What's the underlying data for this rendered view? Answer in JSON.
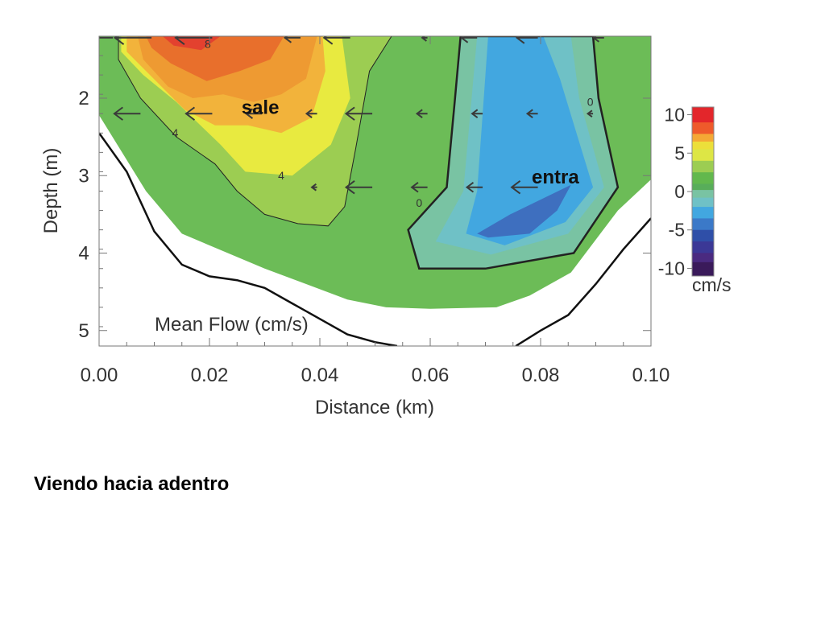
{
  "slide": {
    "caption": "Viendo hacia adentro"
  },
  "chart_data": {
    "type": "heatmap",
    "title": "Mean Flow (cm/s)",
    "xlabel": "Distance (km)",
    "ylabel": "Depth (m)",
    "xlim": [
      0.0,
      0.1
    ],
    "ylim": [
      5.2,
      1.2
    ],
    "x_ticks": [
      "0.00",
      "0.02",
      "0.04",
      "0.06",
      "0.08",
      "0.10"
    ],
    "x_tick_values": [
      0.0,
      0.02,
      0.04,
      0.06,
      0.08,
      0.1
    ],
    "y_ticks": [
      "2",
      "3",
      "4",
      "5"
    ],
    "y_tick_values": [
      2,
      3,
      4,
      5
    ],
    "colorbar": {
      "unit": "cm/s",
      "ticks": [
        "10",
        "5",
        "0",
        "-5",
        "-10"
      ],
      "tick_values": [
        10,
        5,
        0,
        -5,
        -10
      ],
      "range": [
        -11,
        11
      ]
    },
    "annotations": [
      {
        "text": "sale",
        "x": 0.0258,
        "y": 2.2
      },
      {
        "text": "entra",
        "x": 0.0784,
        "y": 3.1
      }
    ],
    "contour_labels": [
      {
        "text": "8",
        "x": 0.0197,
        "y": 1.35
      },
      {
        "text": "4",
        "x": 0.0138,
        "y": 2.5
      },
      {
        "text": "4",
        "x": 0.033,
        "y": 3.05
      },
      {
        "text": "0",
        "x": 0.058,
        "y": 3.4
      },
      {
        "text": "0",
        "x": 0.089,
        "y": 2.1
      }
    ],
    "value_regions": [
      {
        "level": 3,
        "points": [
          [
            0.0,
            1.2
          ],
          [
            0.1,
            1.2
          ],
          [
            0.1,
            3.05
          ],
          [
            0.094,
            3.45
          ],
          [
            0.0855,
            4.25
          ],
          [
            0.078,
            4.55
          ],
          [
            0.072,
            4.7
          ],
          [
            0.06,
            4.72
          ],
          [
            0.052,
            4.7
          ],
          [
            0.045,
            4.6
          ],
          [
            0.03,
            4.2
          ],
          [
            0.015,
            3.75
          ],
          [
            0.0085,
            3.2
          ],
          [
            0.0,
            2.22
          ]
        ]
      },
      {
        "level": 5,
        "points": [
          [
            0.0035,
            1.2
          ],
          [
            0.053,
            1.2
          ],
          [
            0.049,
            1.65
          ],
          [
            0.0465,
            2.65
          ],
          [
            0.0445,
            3.4
          ],
          [
            0.0415,
            3.65
          ],
          [
            0.036,
            3.62
          ],
          [
            0.03,
            3.5
          ],
          [
            0.025,
            3.2
          ],
          [
            0.021,
            2.85
          ],
          [
            0.014,
            2.5
          ],
          [
            0.0075,
            2.0
          ],
          [
            0.0035,
            1.5
          ]
        ]
      },
      {
        "level": 6,
        "points": [
          [
            0.004,
            1.2
          ],
          [
            0.044,
            1.2
          ],
          [
            0.0455,
            2.0
          ],
          [
            0.042,
            2.6
          ],
          [
            0.035,
            3.0
          ],
          [
            0.0265,
            2.95
          ],
          [
            0.022,
            2.6
          ],
          [
            0.014,
            2.05
          ],
          [
            0.008,
            1.7
          ],
          [
            0.004,
            1.4
          ]
        ]
      },
      {
        "level": 7,
        "points": [
          [
            0.005,
            1.2
          ],
          [
            0.0405,
            1.2
          ],
          [
            0.041,
            1.65
          ],
          [
            0.0385,
            2.25
          ],
          [
            0.033,
            2.45
          ],
          [
            0.027,
            2.35
          ],
          [
            0.021,
            2.35
          ],
          [
            0.0155,
            2.15
          ],
          [
            0.0085,
            1.65
          ],
          [
            0.005,
            1.4
          ]
        ]
      },
      {
        "level": 8,
        "points": [
          [
            0.007,
            1.2
          ],
          [
            0.0395,
            1.2
          ],
          [
            0.0375,
            1.75
          ],
          [
            0.033,
            1.95
          ],
          [
            0.028,
            2.05
          ],
          [
            0.0225,
            1.95
          ],
          [
            0.017,
            2.0
          ],
          [
            0.0125,
            1.85
          ],
          [
            0.008,
            1.5
          ]
        ]
      },
      {
        "level": 9,
        "points": [
          [
            0.0085,
            1.2
          ],
          [
            0.0335,
            1.2
          ],
          [
            0.031,
            1.5
          ],
          [
            0.0255,
            1.65
          ],
          [
            0.0195,
            1.78
          ],
          [
            0.013,
            1.55
          ],
          [
            0.0095,
            1.35
          ]
        ]
      },
      {
        "level": 10,
        "points": [
          [
            0.0115,
            1.2
          ],
          [
            0.022,
            1.2
          ],
          [
            0.0185,
            1.38
          ],
          [
            0.0135,
            1.32
          ]
        ]
      },
      {
        "level": 2,
        "points": [
          [
            0.0655,
            1.2
          ],
          [
            0.0895,
            1.2
          ],
          [
            0.0905,
            2.0
          ],
          [
            0.094,
            3.15
          ],
          [
            0.086,
            4.0
          ],
          [
            0.07,
            4.2
          ],
          [
            0.058,
            4.2
          ],
          [
            0.056,
            3.7
          ],
          [
            0.063,
            3.15
          ],
          [
            0.0645,
            2.0
          ]
        ]
      },
      {
        "level": 1,
        "points": [
          [
            0.0685,
            1.2
          ],
          [
            0.0855,
            1.2
          ],
          [
            0.087,
            2.0
          ],
          [
            0.0915,
            3.15
          ],
          [
            0.085,
            3.75
          ],
          [
            0.071,
            4.02
          ],
          [
            0.061,
            3.85
          ],
          [
            0.066,
            3.2
          ],
          [
            0.0675,
            2.0
          ]
        ]
      },
      {
        "level": 0,
        "points": [
          [
            0.0705,
            1.2
          ],
          [
            0.0805,
            1.2
          ],
          [
            0.0835,
            1.75
          ],
          [
            0.0865,
            2.45
          ],
          [
            0.0895,
            3.15
          ],
          [
            0.0845,
            3.6
          ],
          [
            0.0735,
            3.9
          ],
          [
            0.0665,
            3.75
          ],
          [
            0.0685,
            3.2
          ],
          [
            0.0695,
            2.2
          ]
        ]
      },
      {
        "level": -1,
        "points": [
          [
            0.0685,
            3.75
          ],
          [
            0.0745,
            3.5
          ],
          [
            0.0855,
            3.12
          ],
          [
            0.083,
            3.45
          ],
          [
            0.078,
            3.75
          ],
          [
            0.0705,
            3.8
          ]
        ]
      }
    ],
    "bottom_profiles": [
      {
        "name": "left",
        "points": [
          [
            0.0,
            2.45
          ],
          [
            0.005,
            2.95
          ],
          [
            0.01,
            3.72
          ],
          [
            0.015,
            4.15
          ],
          [
            0.02,
            4.3
          ],
          [
            0.025,
            4.35
          ],
          [
            0.03,
            4.45
          ],
          [
            0.035,
            4.65
          ],
          [
            0.04,
            4.85
          ],
          [
            0.045,
            5.05
          ],
          [
            0.05,
            5.15
          ],
          [
            0.054,
            5.2
          ]
        ]
      },
      {
        "name": "right",
        "points": [
          [
            0.0755,
            5.2
          ],
          [
            0.08,
            5.0
          ],
          [
            0.085,
            4.8
          ],
          [
            0.09,
            4.4
          ],
          [
            0.095,
            3.95
          ],
          [
            0.1,
            3.55
          ]
        ]
      }
    ],
    "vectors": [
      {
        "x": 0.0025,
        "y": 1.22,
        "u": -6
      },
      {
        "x": 0.0095,
        "y": 1.22,
        "u": -7
      },
      {
        "x": 0.0205,
        "y": 1.22,
        "u": -7
      },
      {
        "x": 0.0365,
        "y": 1.22,
        "u": -3
      },
      {
        "x": 0.0455,
        "y": 1.22,
        "u": -5
      },
      {
        "x": 0.0595,
        "y": 1.22,
        "u": -1
      },
      {
        "x": 0.0685,
        "y": 1.22,
        "u": -3
      },
      {
        "x": 0.0795,
        "y": 1.22,
        "u": -4
      },
      {
        "x": 0.0915,
        "y": 1.22,
        "u": -2
      },
      {
        "x": 0.0075,
        "y": 2.2,
        "u": -5
      },
      {
        "x": 0.0205,
        "y": 2.2,
        "u": -5
      },
      {
        "x": 0.0295,
        "y": 2.2,
        "u": -3
      },
      {
        "x": 0.0395,
        "y": 2.2,
        "u": -2
      },
      {
        "x": 0.0495,
        "y": 2.2,
        "u": -5
      },
      {
        "x": 0.0595,
        "y": 2.2,
        "u": -2
      },
      {
        "x": 0.0695,
        "y": 2.2,
        "u": -2
      },
      {
        "x": 0.0795,
        "y": 2.2,
        "u": -2
      },
      {
        "x": 0.0895,
        "y": 2.2,
        "u": -1
      },
      {
        "x": 0.0395,
        "y": 3.15,
        "u": -1
      },
      {
        "x": 0.0495,
        "y": 3.15,
        "u": -5
      },
      {
        "x": 0.0595,
        "y": 3.15,
        "u": -3
      },
      {
        "x": 0.0695,
        "y": 3.15,
        "u": -3
      },
      {
        "x": 0.0795,
        "y": 3.15,
        "u": -5
      }
    ]
  }
}
